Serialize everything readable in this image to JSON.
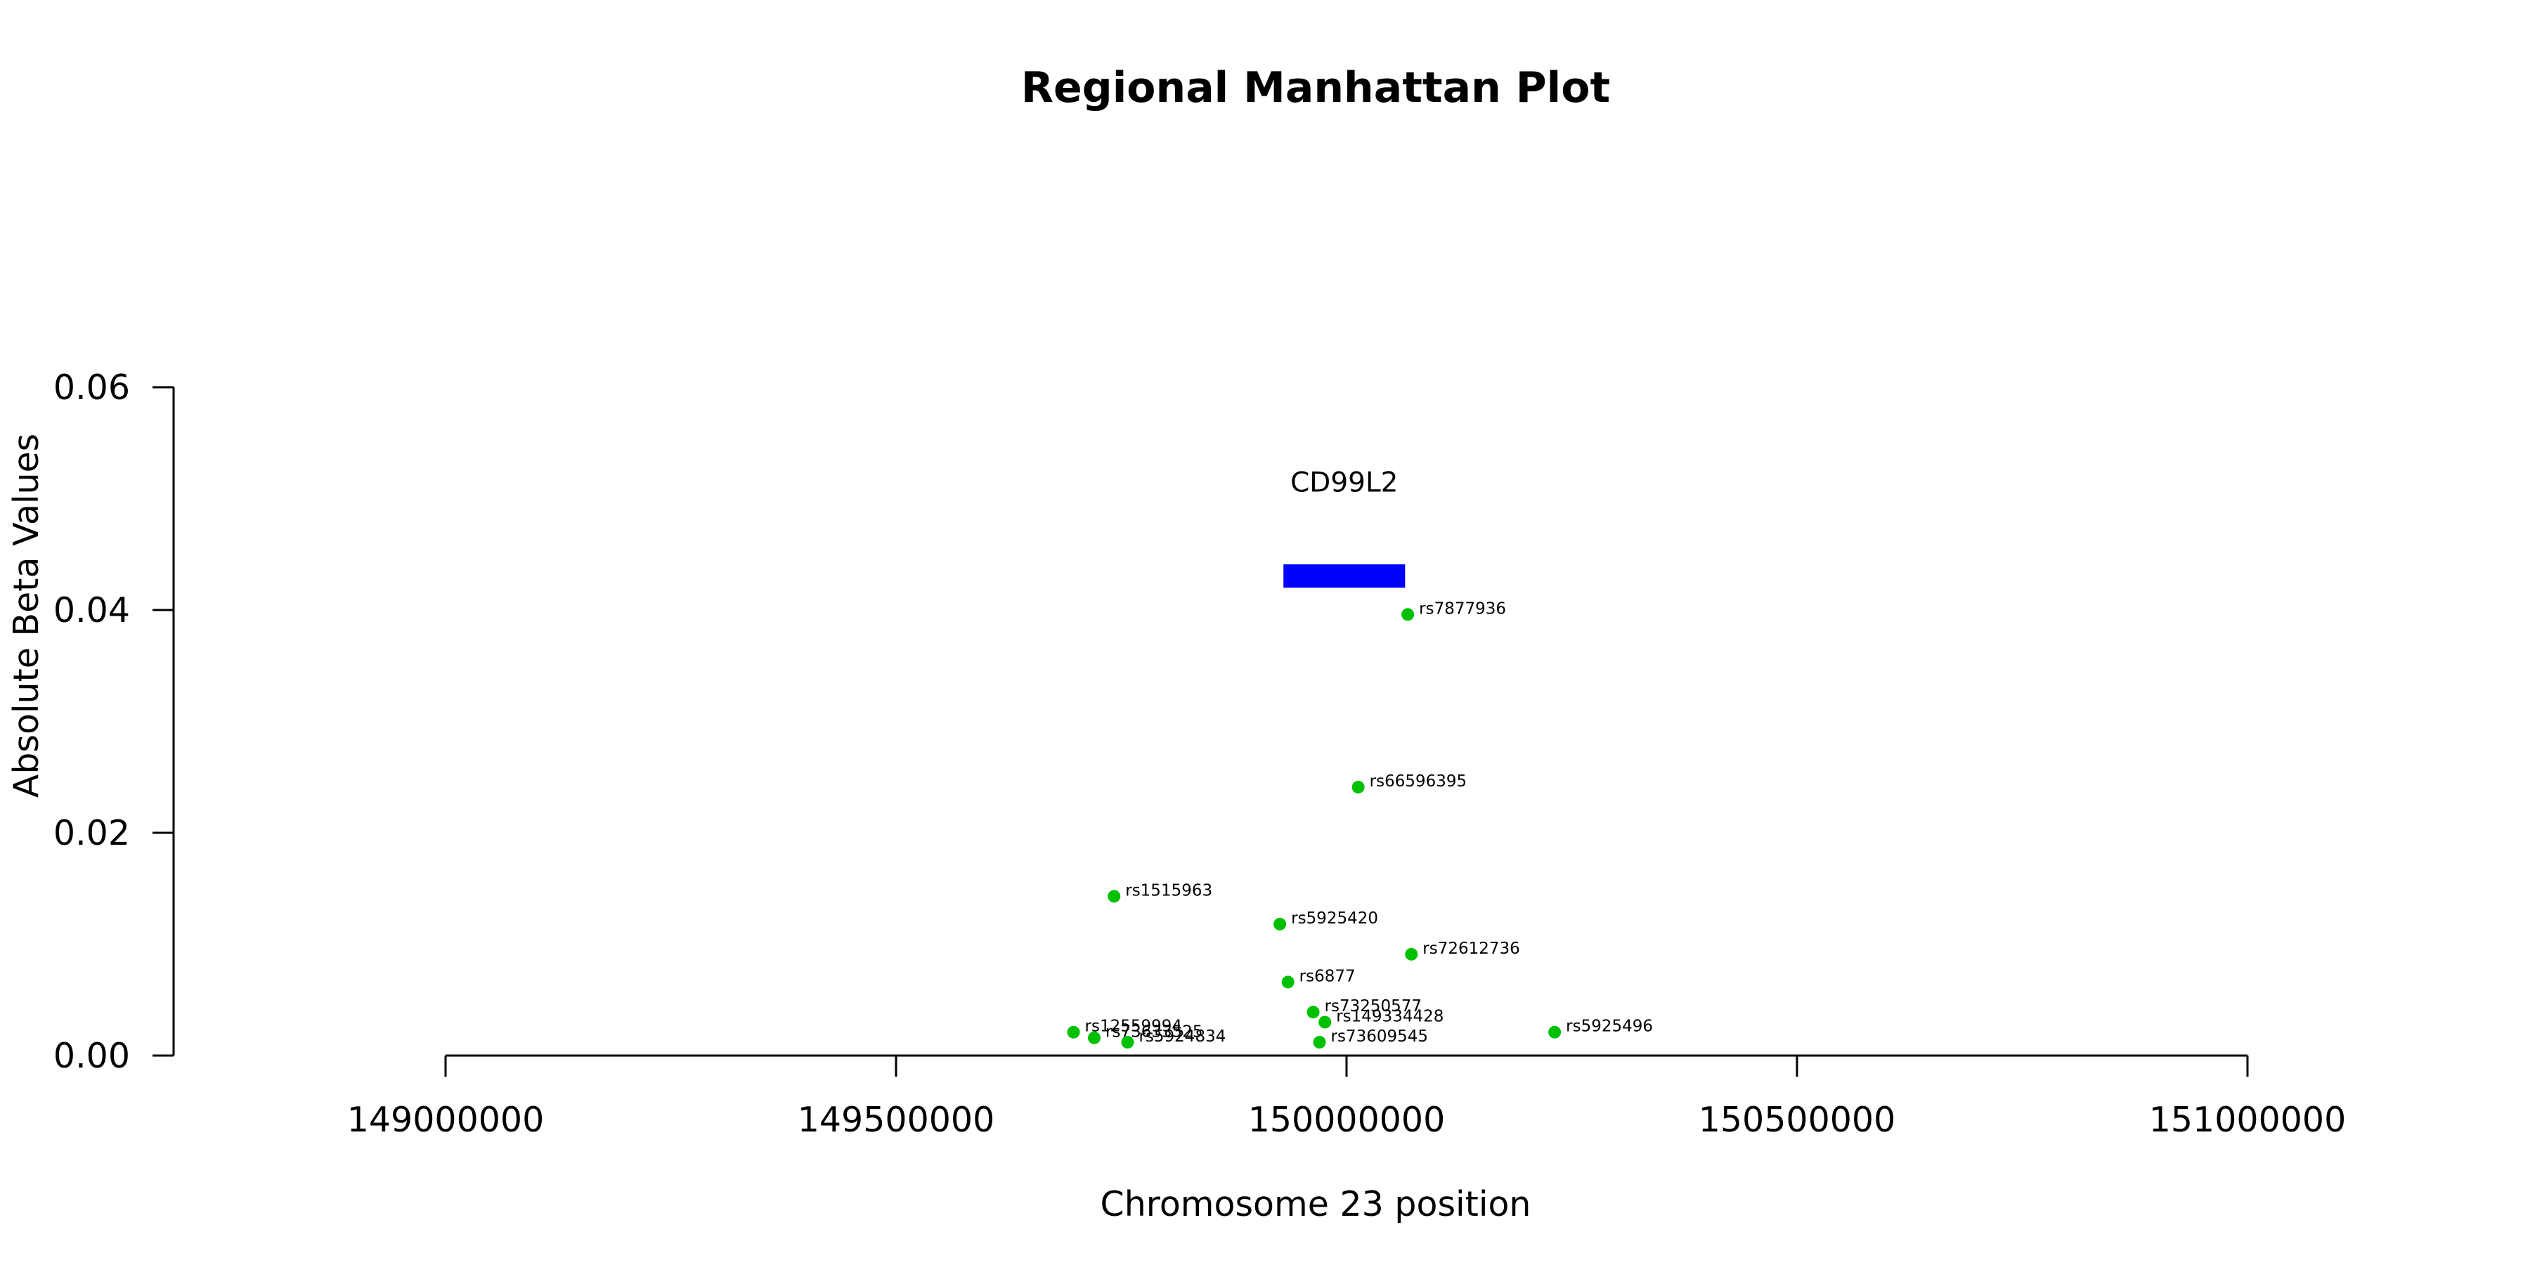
{
  "chart_data": {
    "type": "scatter",
    "title": "Regional Manhattan Plot",
    "xlabel": "Chromosome 23 position",
    "ylabel": "Absolute Beta Values",
    "xlim": [
      148700000,
      151100000
    ],
    "ylim": [
      0,
      0.06
    ],
    "x_ticks": [
      149000000,
      149500000,
      150000000,
      150500000,
      151000000
    ],
    "x_tick_labels": [
      "149000000",
      "149500000",
      "150000000",
      "150500000",
      "151000000"
    ],
    "y_ticks": [
      0,
      0.02,
      0.04,
      0.06
    ],
    "y_tick_labels": [
      "0.00",
      "0.02",
      "0.04",
      "0.06"
    ],
    "grid": false,
    "point_color": "#00c000",
    "gene": {
      "name": "CD99L2",
      "start": 149930000,
      "end": 150065000,
      "y_bottom": 0.042,
      "y_top": 0.0441,
      "label_y": 0.0515,
      "color": "#0000ff"
    },
    "points": [
      {
        "label": "rs7877936",
        "x": 150068000,
        "y": 0.0396
      },
      {
        "label": "rs66596395",
        "x": 150013000,
        "y": 0.0241
      },
      {
        "label": "rs1515963",
        "x": 149742000,
        "y": 0.0143
      },
      {
        "label": "rs5925420",
        "x": 149926000,
        "y": 0.0118
      },
      {
        "label": "rs72612736",
        "x": 150072000,
        "y": 0.0091
      },
      {
        "label": "rs6877",
        "x": 149935000,
        "y": 0.0066
      },
      {
        "label": "rs73250577",
        "x": 149963000,
        "y": 0.0039
      },
      {
        "label": "rs149334428",
        "x": 149976000,
        "y": 0.003
      },
      {
        "label": "rs5925496",
        "x": 150231000,
        "y": 0.0021
      },
      {
        "label": "rs12559994",
        "x": 149697000,
        "y": 0.0021
      },
      {
        "label": "rs73633525",
        "x": 149720000,
        "y": 0.0016
      },
      {
        "label": "rs5924834",
        "x": 149757000,
        "y": 0.0012
      },
      {
        "label": "rs73609545",
        "x": 149970000,
        "y": 0.0012
      }
    ]
  }
}
